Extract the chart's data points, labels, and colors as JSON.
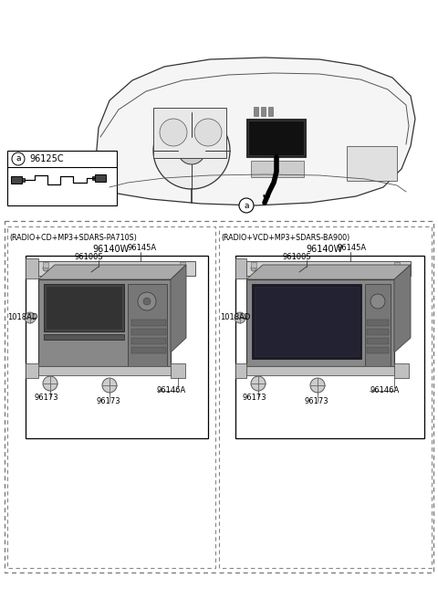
{
  "bg_color": "#ffffff",
  "part_label_a": "a",
  "part_number_a": "96125C",
  "left_panel_condition": "(RADIO+CD+MP3+SDARS-PA710S)",
  "right_panel_condition": "(RADIO+VCD+MP3+SDARS-BA900)",
  "left_panel_part": "96140W",
  "right_panel_part": "96140W",
  "label_96145A": "96145A",
  "label_96100S": "96100S",
  "label_96146A": "96146A",
  "label_96173": "96173",
  "label_1018AD": "1018AD",
  "figsize": [
    4.8,
    6.56
  ],
  "dpi": 100
}
